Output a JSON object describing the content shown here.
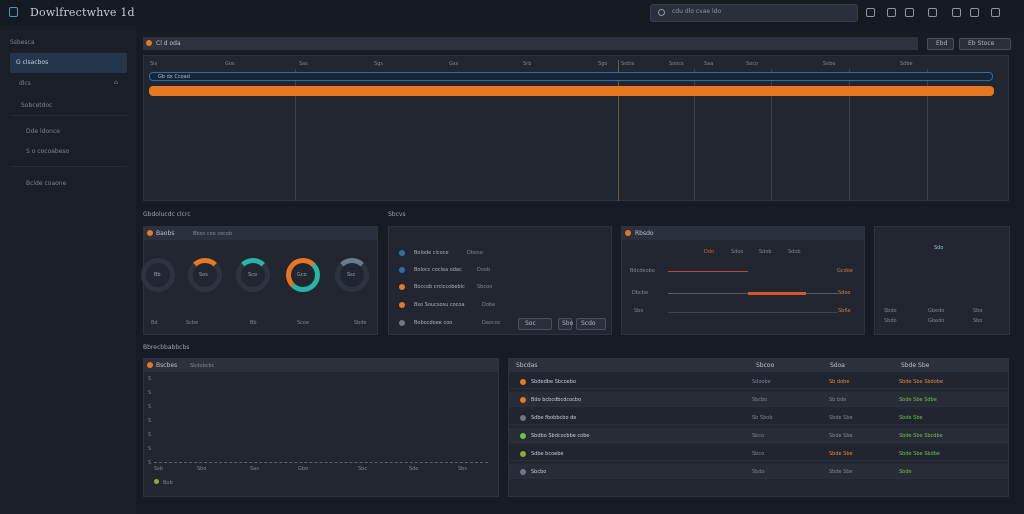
{
  "header": {
    "app_title": "Dowlfrectwhve 1d",
    "search_text": "cdu dlo cvae ldo"
  },
  "sidebar": {
    "section_label": "Ssbesca",
    "items": [
      {
        "label": "G clsacbos"
      },
      {
        "label": "dlcs"
      },
      {
        "label": "Sobcetdoc"
      },
      {
        "label": "Dde ldonce"
      },
      {
        "label": "S o cocoabeso"
      },
      {
        "label": "Bclde coaone"
      }
    ]
  },
  "timeline": {
    "title": "Cl d oda",
    "buttons": [
      "Ebd",
      "Eb Stoce"
    ],
    "ticks": [
      "Sis",
      "Gos",
      "Sas",
      "Sgs",
      "Gss",
      "Srb",
      "Sgo",
      "Sobis",
      "Soocs",
      "Saa",
      "Soco",
      "Sobe",
      "Sdbe"
    ],
    "row_label": "Gb dx Ccoad",
    "accent_color": "#e87722"
  },
  "section1_title": "Gbdolucdc clcrc",
  "section2_title": "Sbcvs",
  "gauges_panel": {
    "title": "Baobs",
    "subtitle": "Bbos coo cecob",
    "values": [
      "Bb",
      "Sos",
      "Sco",
      "Gco",
      "Ssc"
    ],
    "footer": [
      "Bd",
      "Scbe",
      "Bb",
      "Scoe",
      "Sbde"
    ]
  },
  "status_panel": {
    "items": [
      {
        "label": "Bolode clcoce",
        "value": "Dbeso"
      },
      {
        "label": "Bolocc coclea odac",
        "value": "Doob"
      },
      {
        "label": "Boccob crclccobeblc",
        "value": "Sbcoo"
      },
      {
        "label": "Bso Soucsosu cocoa",
        "value": "Dobe"
      },
      {
        "label": "Bobocdoee coo",
        "value": "Daococ"
      }
    ],
    "footer": [
      "Soc",
      "Sbo",
      "Scdo"
    ]
  },
  "signal_panel": {
    "title": "Rbsdo",
    "legend": [
      "Ddo",
      "Sdoo",
      "Sdob",
      "Sdob"
    ],
    "rows": [
      {
        "label": "Bdcdeobe",
        "value": "Gcdoe"
      },
      {
        "label": "Dbcbe",
        "value": "Sdoo"
      },
      {
        "label": "Sbo",
        "value": "Sb6e"
      }
    ]
  },
  "small_panel": {
    "value": "Sdo",
    "footer": [
      "Sbdo",
      "Gbedo",
      "Sbo"
    ]
  },
  "section3_title": "Bbrecbbabbcbs",
  "chart_panel": {
    "title": "Bscbes",
    "subtitle": "Sbdobcbc",
    "x_ticks": [
      "Ssb",
      "Sbo",
      "Sas",
      "Gbo",
      "Sbc",
      "Sdo",
      "Sbs",
      "Sae"
    ],
    "y_ticks": [
      "S",
      "S",
      "S",
      "S",
      "S",
      "S",
      "S"
    ],
    "legend": "Bob"
  },
  "table": {
    "headers": [
      "Sbcdas",
      "Sbcoo",
      "Sdoa",
      "Sbde Sbe"
    ],
    "rows": [
      {
        "name": "Sbdedbe Sbcoebo",
        "value": "Sdoobe",
        "col2": "Sb dobe",
        "col3": "Sbde Sbe Sbdobe"
      },
      {
        "name": "Bdo bcbcdbcdcocbo",
        "value": "Sbcbo",
        "col2": "Sb bde",
        "col3": "Sbde Sbe Sdbe"
      },
      {
        "name": "Sdbe fbobbcbo de",
        "value": "Sb Sbob",
        "col2": "Sbde Sbe",
        "col3": "Sbde Sbe"
      },
      {
        "name": "Sbdbo Sbdcocbbe cobe",
        "value": "Sbco",
        "col2": "Sbde Sbe",
        "col3": "Sbde Sbe Sbcdbe"
      },
      {
        "name": "Sdbe bcoebe",
        "value": "Sbco",
        "col2": "Sbde Sbe",
        "col3": "Sbde Sbe Sbdbe"
      },
      {
        "name": "Sbcbo",
        "value": "Sbdo",
        "col2": "Sbde Sbe",
        "col3": "Sbde"
      }
    ]
  }
}
